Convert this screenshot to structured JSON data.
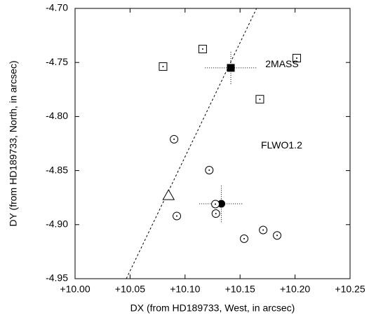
{
  "chart_data": {
    "type": "scatter",
    "x_label": "DX (from HD189733, West, in arcsec)",
    "y_label": "DY (from HD189733, North, in arcsec)",
    "xlim": [
      10.0,
      10.25
    ],
    "ylim": [
      -4.95,
      -4.7
    ],
    "xticks": [
      {
        "value": 10.0,
        "label": "+10.00"
      },
      {
        "value": 10.05,
        "label": "+10.05"
      },
      {
        "value": 10.1,
        "label": "+10.10"
      },
      {
        "value": 10.15,
        "label": "+10.15"
      },
      {
        "value": 10.2,
        "label": "+10.20"
      },
      {
        "value": 10.25,
        "label": "+10.25"
      }
    ],
    "yticks": [
      {
        "value": -4.95,
        "label": "-4.95"
      },
      {
        "value": -4.9,
        "label": "-4.90"
      },
      {
        "value": -4.85,
        "label": "-4.85"
      },
      {
        "value": -4.8,
        "label": "-4.80"
      },
      {
        "value": -4.75,
        "label": "-4.75"
      },
      {
        "value": -4.7,
        "label": "-4.70"
      }
    ],
    "color": "#000000",
    "series": [
      {
        "marker": "open-square-dot",
        "x": [
          10.116,
          10.08,
          10.2015,
          10.168
        ],
        "values": [
          -4.7376,
          -4.7538,
          -4.746,
          -4.784
        ]
      },
      {
        "marker": "filled-square",
        "x": [
          10.1416
        ],
        "values": [
          -4.755
        ],
        "xerr": [
          0.0235
        ],
        "yerr": [
          0.015
        ]
      },
      {
        "marker": "filled-circle",
        "x": [
          10.133
        ],
        "values": [
          -4.8807
        ],
        "xerr": [
          0.02
        ],
        "yerr": [
          0.017
        ]
      },
      {
        "marker": "open-circle-dot",
        "x": [
          10.09,
          10.122,
          10.1276,
          10.128,
          10.0925,
          10.1537,
          10.171,
          10.1837
        ],
        "values": [
          -4.821,
          -4.8496,
          -4.881,
          -4.8898,
          -4.892,
          -4.913,
          -4.905,
          -4.91
        ]
      },
      {
        "marker": "open-triangle",
        "x": [
          10.085
        ],
        "values": [
          -4.873
        ]
      }
    ],
    "fit_line": {
      "x": [
        10.0466,
        10.165
      ],
      "values": [
        -4.95,
        -4.7
      ]
    },
    "annotations": [
      {
        "text": "2MASS",
        "x": 10.173,
        "y": -4.752
      },
      {
        "text": "FLWO1.2",
        "x": 10.169,
        "y": -4.827
      }
    ]
  }
}
